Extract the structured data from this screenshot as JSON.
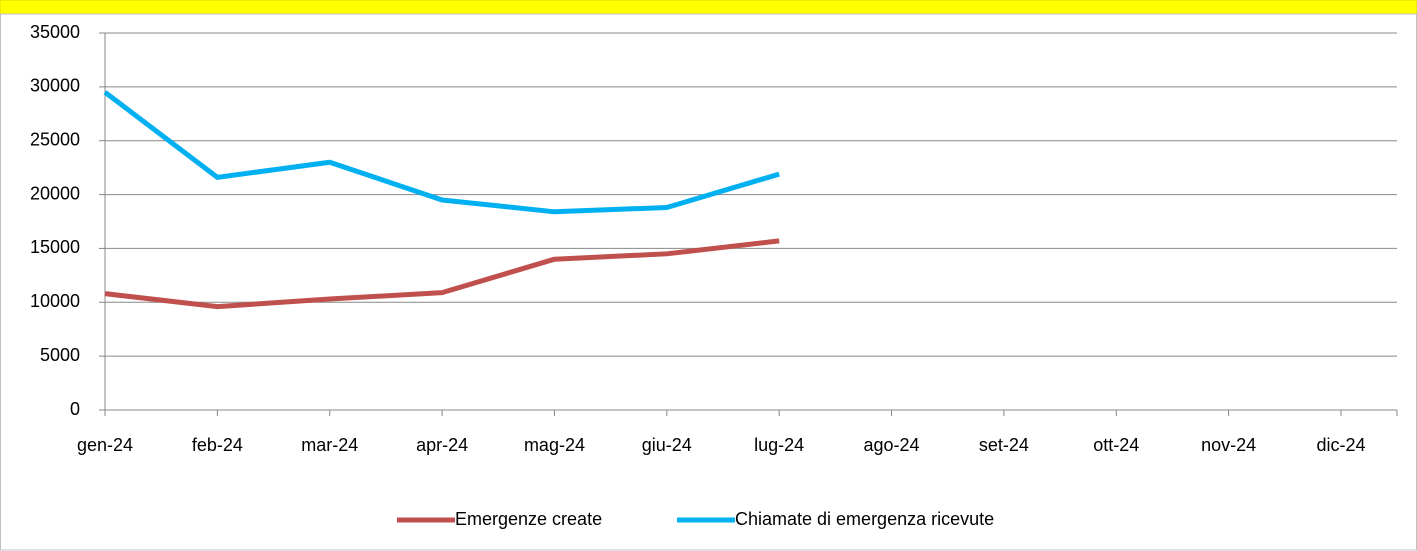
{
  "chart_data": {
    "type": "line",
    "categories": [
      "gen-24",
      "feb-24",
      "mar-24",
      "apr-24",
      "mag-24",
      "giu-24",
      "lug-24",
      "ago-24",
      "set-24",
      "ott-24",
      "nov-24",
      "dic-24"
    ],
    "series": [
      {
        "name": "Emergenze create",
        "color": "#c0504d",
        "values": [
          10800,
          9600,
          10300,
          10900,
          14000,
          14500,
          15700,
          null,
          null,
          null,
          null,
          null
        ]
      },
      {
        "name": "Chiamate di emergenza ricevute",
        "color": "#00b0f0",
        "values": [
          29500,
          21600,
          23000,
          19500,
          18400,
          18800,
          21900,
          null,
          null,
          null,
          null,
          null
        ]
      }
    ],
    "ylim": [
      0,
      35000
    ],
    "yticks": [
      0,
      5000,
      10000,
      15000,
      20000,
      25000,
      30000,
      35000
    ],
    "grid": true,
    "legend": "bottom"
  }
}
